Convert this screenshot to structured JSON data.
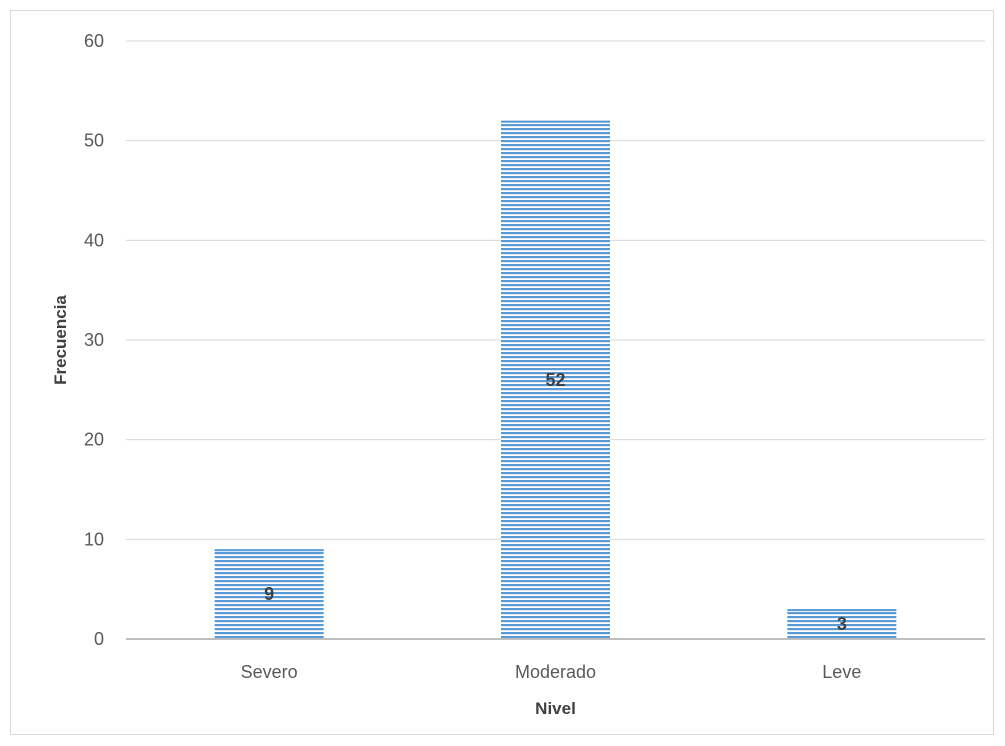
{
  "chart_data": {
    "type": "bar",
    "title": "",
    "xlabel": "Nivel",
    "ylabel": "Frecuencia",
    "categories": [
      "Severo",
      "Moderado",
      "Leve"
    ],
    "values": [
      9,
      52,
      3
    ],
    "data_labels": [
      "9",
      "52",
      "3"
    ],
    "ylim": [
      0,
      60
    ],
    "yticks": [
      0,
      10,
      20,
      30,
      40,
      50,
      60
    ],
    "ytick_labels": [
      "0",
      "10",
      "20",
      "30",
      "40",
      "50",
      "60"
    ],
    "grid": true,
    "legend": "none",
    "bar_color": "#5b9bd5",
    "bar_pattern": "horizontal-stripes",
    "gridline_color": "#d9d9d9",
    "axis_color": "#bfbfbf"
  }
}
